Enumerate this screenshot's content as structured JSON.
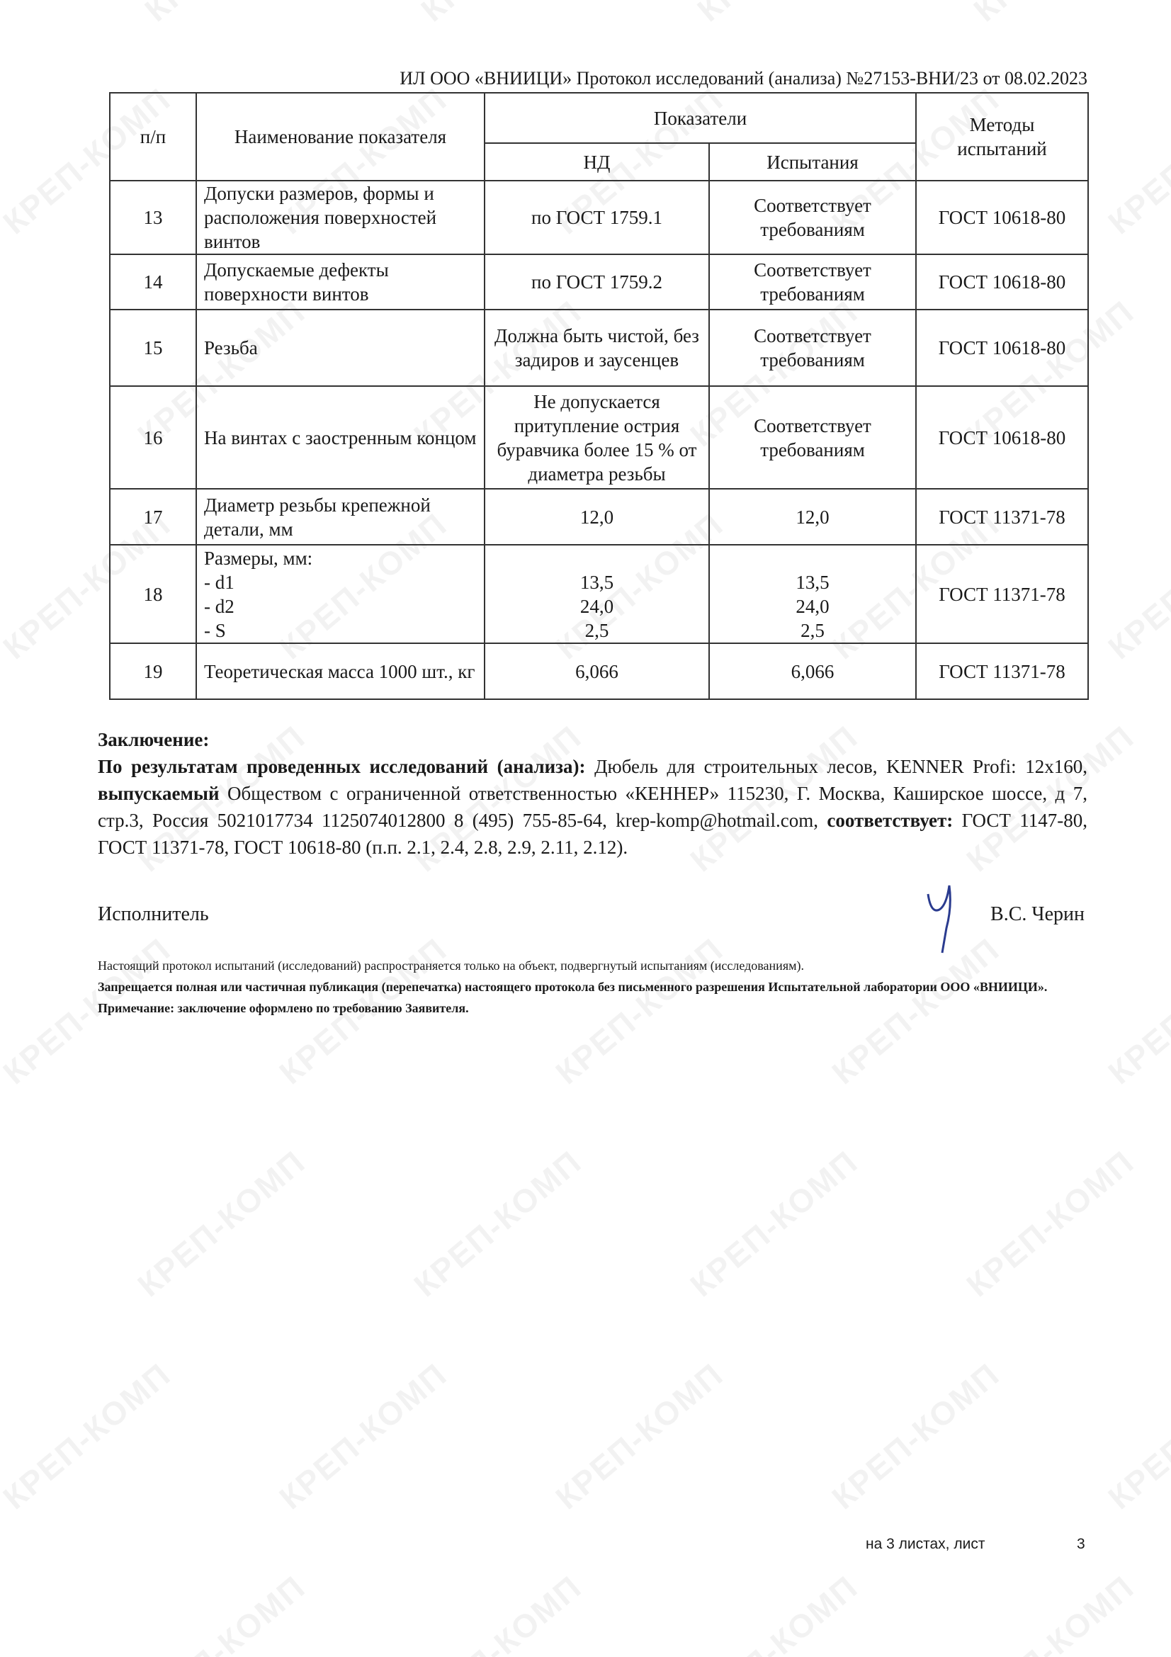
{
  "watermark": "КРЕП-КОМП",
  "header": {
    "line": "ИЛ ООО «ВНИИЦИ» Протокол исследований (анализа)  №27153-ВНИ/23 от  08.02.2023"
  },
  "table": {
    "headers": {
      "num": "п/п",
      "name": "Наименование показателя",
      "group": "Показатели",
      "nd": "НД",
      "test": "Испытания",
      "methods": "Методы испытаний"
    },
    "rows": [
      {
        "num": "13",
        "name": "Допуски размеров, формы и расположения поверхностей винтов",
        "nd": "по ГОСТ 1759.1",
        "test": "Соответствует требованиям",
        "method": "ГОСТ 10618-80"
      },
      {
        "num": "14",
        "name": "Допускаемые дефекты поверхности винтов",
        "nd": "по ГОСТ 1759.2",
        "test": "Соответствует требованиям",
        "method": "ГОСТ 10618-80"
      },
      {
        "num": "15",
        "name": "Резьба",
        "nd": "Должна быть чистой, без задиров и заусенцев",
        "test": "Соответствует требованиям",
        "method": "ГОСТ 10618-80"
      },
      {
        "num": "16",
        "name": "На винтах с заостренным концом",
        "nd": "Не допускается притупление острия буравчика более 15 % от диаметра резьбы",
        "test": "Соответствует требованиям",
        "method": "ГОСТ 10618-80"
      },
      {
        "num": "17",
        "name": "Диаметр резьбы крепежной детали, мм",
        "nd": "12,0",
        "test": "12,0",
        "method": "ГОСТ 11371-78"
      },
      {
        "num": "18",
        "name": "Размеры, мм:",
        "sub": [
          "- d1",
          "- d2",
          "- S"
        ],
        "nd": [
          "13,5",
          "24,0",
          "2,5"
        ],
        "test": [
          "13,5",
          "24,0",
          "2,5"
        ],
        "method": "ГОСТ 11371-78"
      },
      {
        "num": "19",
        "name": "Теоретическая масса 1000 шт., кг",
        "nd": "6,066",
        "test": "6,066",
        "method": "ГОСТ 11371-78"
      }
    ]
  },
  "conclusion": {
    "title": "Заключение:",
    "lead": "По результатам проведенных исследований (анализа):",
    "product": " Дюбель для строительных лесов, KENNER Profi: 12x160, ",
    "issued_label": "выпускаемый",
    "issuer": " Обществом с ограниченной ответственностью «КЕННЕР»  115230, Г. Москва, Каширское шоссе, д 7, стр.3, Россия 5021017734 1125074012800 8 (495) 755-85-64, krep-komp@hotmail.com, ",
    "conforms_label": "соответствует:",
    "standards": " ГОСТ 1147-80, ГОСТ 11371-78, ГОСТ 10618-80 (п.п. 2.1, 2.4, 2.8, 2.9, 2.11, 2.12)."
  },
  "signature": {
    "role": "Исполнитель",
    "name": "В.С. Черин"
  },
  "notes": {
    "scope": "Настоящий протокол испытаний (исследований) распространяется только на объект, подвергнутый испытаниям (исследованиям).",
    "prohibition": "Запрещается полная или частичная публикация (перепечатка) настоящего протокола без письменного разрешения Испытательной лаборатории  ООО «ВНИИЦИ».",
    "remark": "Примечание: заключение оформлено по требованию Заявителя."
  },
  "footer": {
    "sheets": "на 3  листах, лист",
    "page": "3"
  }
}
